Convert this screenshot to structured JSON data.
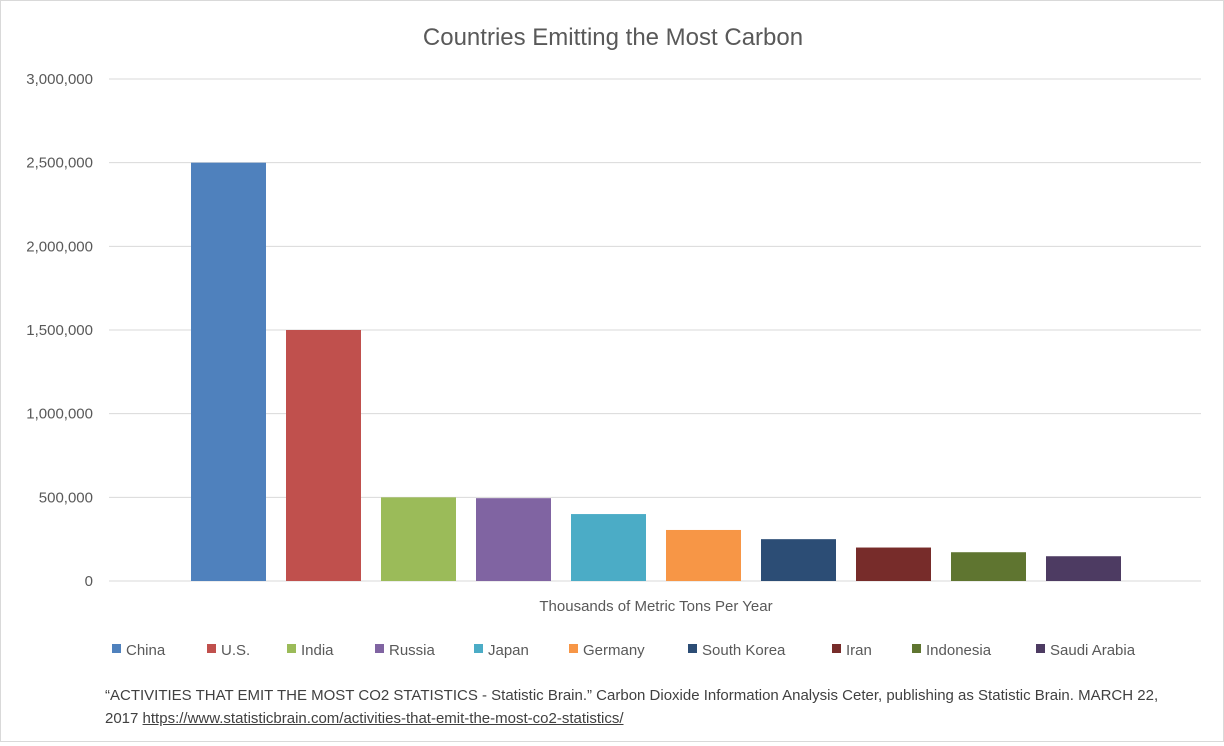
{
  "chart_data": {
    "type": "bar",
    "title": "Countries Emitting the Most Carbon",
    "xlabel": "Thousands of Metric Tons Per Year",
    "ylabel": "",
    "ylim": [
      0,
      3000000
    ],
    "yticks": [
      0,
      500000,
      1000000,
      1500000,
      2000000,
      2500000,
      3000000
    ],
    "ytick_labels": [
      "0",
      "500,000",
      "1,000,000",
      "1,500,000",
      "2,000,000",
      "2,500,000",
      "3,000,000"
    ],
    "grid": true,
    "legend_position": "bottom",
    "categories": [
      "China",
      "U.S.",
      "India",
      "Russia",
      "Japan",
      "Germany",
      "South Korea",
      "Iran",
      "Indonesia",
      "Saudi Arabia"
    ],
    "values": [
      2500000,
      1500000,
      500000,
      495000,
      400000,
      305000,
      250000,
      200000,
      172000,
      148000
    ],
    "colors": [
      "#4f81bd",
      "#c0504d",
      "#9bbb59",
      "#8064a2",
      "#4bacc6",
      "#f79646",
      "#2c4d75",
      "#772c2a",
      "#5f7530",
      "#4d3b62"
    ]
  },
  "source": {
    "text": "“ACTIVITIES THAT EMIT THE MOST CO2 STATISTICS -  Statistic Brain.” Carbon Dioxide Information Analysis Ceter, publishing as Statistic Brain. MARCH 22, 2017 ",
    "link": "https://www.statisticbrain.com/activities-that-emit-the-most-co2-statistics/"
  }
}
